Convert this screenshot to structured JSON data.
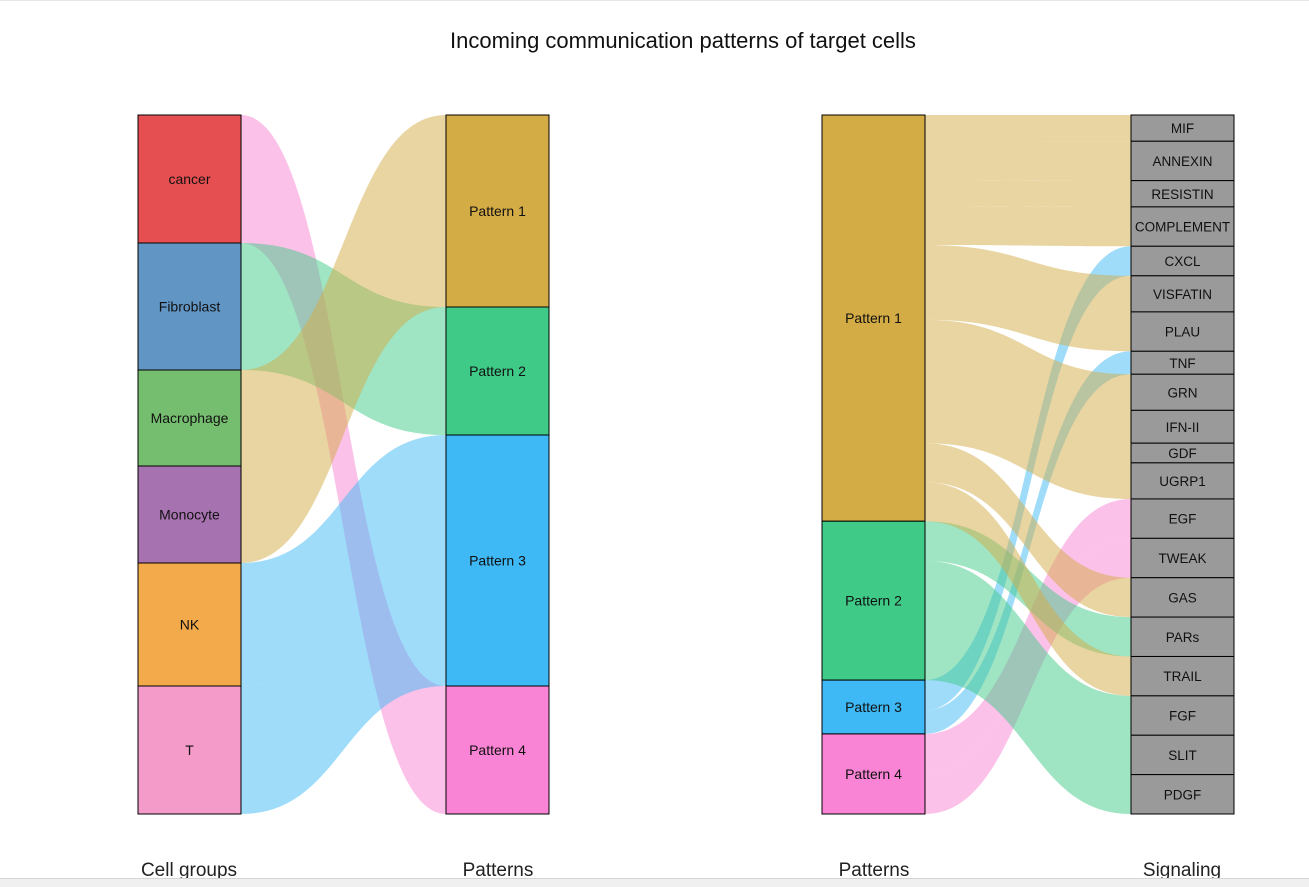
{
  "chart_data": {
    "type": "alluvial",
    "title": "Incoming communication patterns of target cells",
    "panels": [
      {
        "axis_labels": [
          "Cell groups",
          "Patterns"
        ],
        "left_nodes": [
          {
            "name": "cancer",
            "color": "#E64F52"
          },
          {
            "name": "Fibroblast",
            "color": "#6196C4"
          },
          {
            "name": "Macrophage",
            "color": "#76BE6F"
          },
          {
            "name": "Monocyte",
            "color": "#A772B0"
          },
          {
            "name": "NK",
            "color": "#F3AA4A"
          },
          {
            "name": "T",
            "color": "#F59BC9"
          }
        ],
        "right_nodes": [
          {
            "name": "Pattern 1",
            "color": "#D4AC45"
          },
          {
            "name": "Pattern 2",
            "color": "#3FCA87"
          },
          {
            "name": "Pattern 3",
            "color": "#3FB9F6"
          },
          {
            "name": "Pattern 4",
            "color": "#F983D4"
          }
        ],
        "assignments": {
          "cancer": "Pattern 4",
          "Fibroblast": "Pattern 2",
          "Macrophage": "Pattern 1",
          "Monocyte": "Pattern 1",
          "NK": "Pattern 3",
          "T": "Pattern 3"
        }
      },
      {
        "axis_labels": [
          "Patterns",
          "Signaling"
        ],
        "left_nodes": [
          {
            "name": "Pattern 1",
            "color": "#D4AC45",
            "weight": 63.4
          },
          {
            "name": "Pattern 2",
            "color": "#3FCA87",
            "weight": 24.8
          },
          {
            "name": "Pattern 3",
            "color": "#3FB9F6",
            "weight": 8.4
          },
          {
            "name": "Pattern 4",
            "color": "#F983D4",
            "weight": 12.5
          }
        ],
        "right_nodes": [
          {
            "name": "MIF",
            "weight": 4,
            "pattern": "Pattern 1"
          },
          {
            "name": "ANNEXIN",
            "weight": 6,
            "pattern": "Pattern 1"
          },
          {
            "name": "RESISTIN",
            "weight": 4,
            "pattern": "Pattern 1"
          },
          {
            "name": "COMPLEMENT",
            "weight": 6,
            "pattern": "Pattern 1"
          },
          {
            "name": "CXCL",
            "weight": 4.5,
            "pattern": "Pattern 3"
          },
          {
            "name": "VISFATIN",
            "weight": 5.5,
            "pattern": "Pattern 1"
          },
          {
            "name": "PLAU",
            "weight": 6,
            "pattern": "Pattern 1"
          },
          {
            "name": "TNF",
            "weight": 3.5,
            "pattern": "Pattern 3"
          },
          {
            "name": "GRN",
            "weight": 5.5,
            "pattern": "Pattern 1"
          },
          {
            "name": "IFN-II",
            "weight": 5,
            "pattern": "Pattern 1"
          },
          {
            "name": "GDF",
            "weight": 3,
            "pattern": "Pattern 1"
          },
          {
            "name": "UGRP1",
            "weight": 5.5,
            "pattern": "Pattern 1"
          },
          {
            "name": "EGF",
            "weight": 6,
            "pattern": "Pattern 4"
          },
          {
            "name": "TWEAK",
            "weight": 6,
            "pattern": "Pattern 4"
          },
          {
            "name": "GAS",
            "weight": 6,
            "pattern": "Pattern 1"
          },
          {
            "name": "PARs",
            "weight": 6,
            "pattern": "Pattern 2"
          },
          {
            "name": "TRAIL",
            "weight": 6,
            "pattern": "Pattern 1"
          },
          {
            "name": "FGF",
            "weight": 6,
            "pattern": "Pattern 2"
          },
          {
            "name": "SLIT",
            "weight": 6,
            "pattern": "Pattern 2"
          },
          {
            "name": "PDGF",
            "weight": 6,
            "pattern": "Pattern 2"
          }
        ],
        "signaling_color": "#9A9A9A"
      }
    ]
  }
}
